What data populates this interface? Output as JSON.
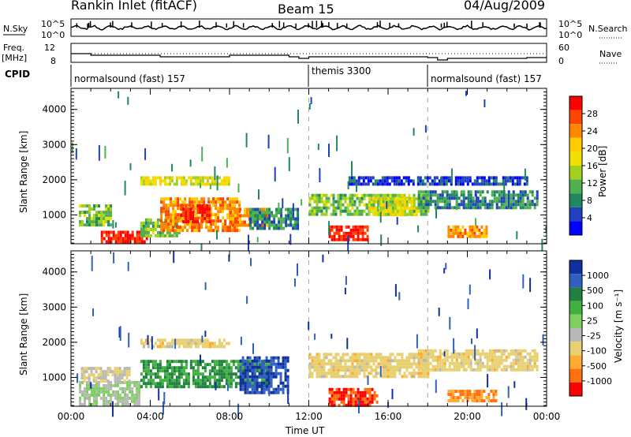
{
  "header": {
    "station": "Rankin Inlet (fitACF)",
    "beam": "Beam 15",
    "date": "04/Aug/2009"
  },
  "top_panels": {
    "nsky_label": "N.Sky",
    "nsky_ticks": [
      "10^5",
      "10^0"
    ],
    "nsearch_label": "N.Search",
    "nsearch_ticks": [
      "10^5",
      "10^0"
    ],
    "freq_label_top": "Freq.",
    "freq_label_bot": "[MHz]",
    "freq_ticks": [
      "12",
      "8"
    ],
    "nave_label": "Nave",
    "nave_ticks": [
      "60",
      "0"
    ],
    "cpid_label": "CPID",
    "cpid_segments": [
      {
        "text": "normalsound (fast) 157",
        "start": 0,
        "end": 12
      },
      {
        "text": "themis 3300",
        "start": 12,
        "end": 18
      },
      {
        "text": "normalsound (fast) 157",
        "start": 18,
        "end": 24
      }
    ]
  },
  "power_legend": {
    "title": "Power [dB]",
    "ticks": [
      "28",
      "24",
      "20",
      "16",
      "12",
      "8",
      "4"
    ],
    "colors": [
      "#ff0000",
      "#ff4400",
      "#ff8800",
      "#ffcc00",
      "#f0e000",
      "#a0d020",
      "#50b050",
      "#208860",
      "#2040c0",
      "#0000ff"
    ]
  },
  "velocity_legend": {
    "title": "Velocity [m s⁻¹]",
    "ticks": [
      "1000",
      "500",
      "100",
      "25",
      "-25",
      "-100",
      "-500",
      "-1000"
    ],
    "colors": [
      "#1030a0",
      "#3060c0",
      "#208040",
      "#40b040",
      "#80d060",
      "#b8b8b8",
      "#e8d070",
      "#ffaa30",
      "#ff7010",
      "#ff0000"
    ]
  },
  "chart_data": [
    {
      "type": "heatmap",
      "title": "Power",
      "xlabel": "",
      "ylabel": "Slant Range [km]",
      "xlim": [
        0,
        24
      ],
      "ylim": [
        180,
        4600
      ],
      "y_ticks": [
        "1000",
        "2000",
        "3000",
        "4000"
      ],
      "regions": [
        {
          "x": [
            0.4,
            2.0
          ],
          "y": [
            700,
            1300
          ],
          "v": 12
        },
        {
          "x": [
            1.5,
            3.8
          ],
          "y": [
            220,
            550
          ],
          "v": 28
        },
        {
          "x": [
            3.5,
            5.5
          ],
          "y": [
            400,
            900
          ],
          "v": 12
        },
        {
          "x": [
            4.5,
            8.5
          ],
          "y": [
            600,
            1500
          ],
          "v": 22
        },
        {
          "x": [
            5.5,
            7.0
          ],
          "y": [
            800,
            1300
          ],
          "v": 28
        },
        {
          "x": [
            3.5,
            8.0
          ],
          "y": [
            1900,
            2100
          ],
          "v": 16
        },
        {
          "x": [
            8.0,
            10.0
          ],
          "y": [
            700,
            1200
          ],
          "v": 22
        },
        {
          "x": [
            9.0,
            11.5
          ],
          "y": [
            600,
            1200
          ],
          "v": 8
        },
        {
          "x": [
            13.0,
            15.0
          ],
          "y": [
            300,
            700
          ],
          "v": 28
        },
        {
          "x": [
            12.0,
            18.0
          ],
          "y": [
            1000,
            1600
          ],
          "v": 12
        },
        {
          "x": [
            15.0,
            17.5
          ],
          "y": [
            1000,
            1500
          ],
          "v": 16
        },
        {
          "x": [
            17.5,
            23.5
          ],
          "y": [
            1200,
            1700
          ],
          "v": 8
        },
        {
          "x": [
            19.0,
            21.0
          ],
          "y": [
            400,
            700
          ],
          "v": 22
        },
        {
          "x": [
            14.0,
            23.0
          ],
          "y": [
            1900,
            2100
          ],
          "v": 4
        }
      ]
    },
    {
      "type": "heatmap",
      "title": "Velocity",
      "xlabel": "Time UT",
      "ylabel": "Slant Range [km]",
      "xlim": [
        0,
        24
      ],
      "ylim": [
        180,
        4600
      ],
      "x_ticks": [
        "00:00",
        "04:00",
        "08:00",
        "12:00",
        "16:00",
        "20:00",
        "00:00"
      ],
      "y_ticks": [
        "1000",
        "2000",
        "3000",
        "4000"
      ],
      "regions": [
        {
          "x": [
            0.4,
            3.5
          ],
          "y": [
            220,
            900
          ],
          "v": 100
        },
        {
          "x": [
            0.5,
            3.0
          ],
          "y": [
            900,
            1300
          ],
          "v": 25
        },
        {
          "x": [
            3.5,
            10.0
          ],
          "y": [
            700,
            1500
          ],
          "v": 500
        },
        {
          "x": [
            8.5,
            11.0
          ],
          "y": [
            600,
            1600
          ],
          "v": 1000
        },
        {
          "x": [
            3.5,
            8.0
          ],
          "y": [
            1900,
            2100
          ],
          "v": 0
        },
        {
          "x": [
            13.0,
            15.5
          ],
          "y": [
            250,
            700
          ],
          "v": -500
        },
        {
          "x": [
            12.0,
            18.0
          ],
          "y": [
            1000,
            1700
          ],
          "v": 0
        },
        {
          "x": [
            17.5,
            23.5
          ],
          "y": [
            1200,
            1800
          ],
          "v": 0
        },
        {
          "x": [
            19.0,
            21.5
          ],
          "y": [
            300,
            650
          ],
          "v": -100
        }
      ]
    }
  ]
}
